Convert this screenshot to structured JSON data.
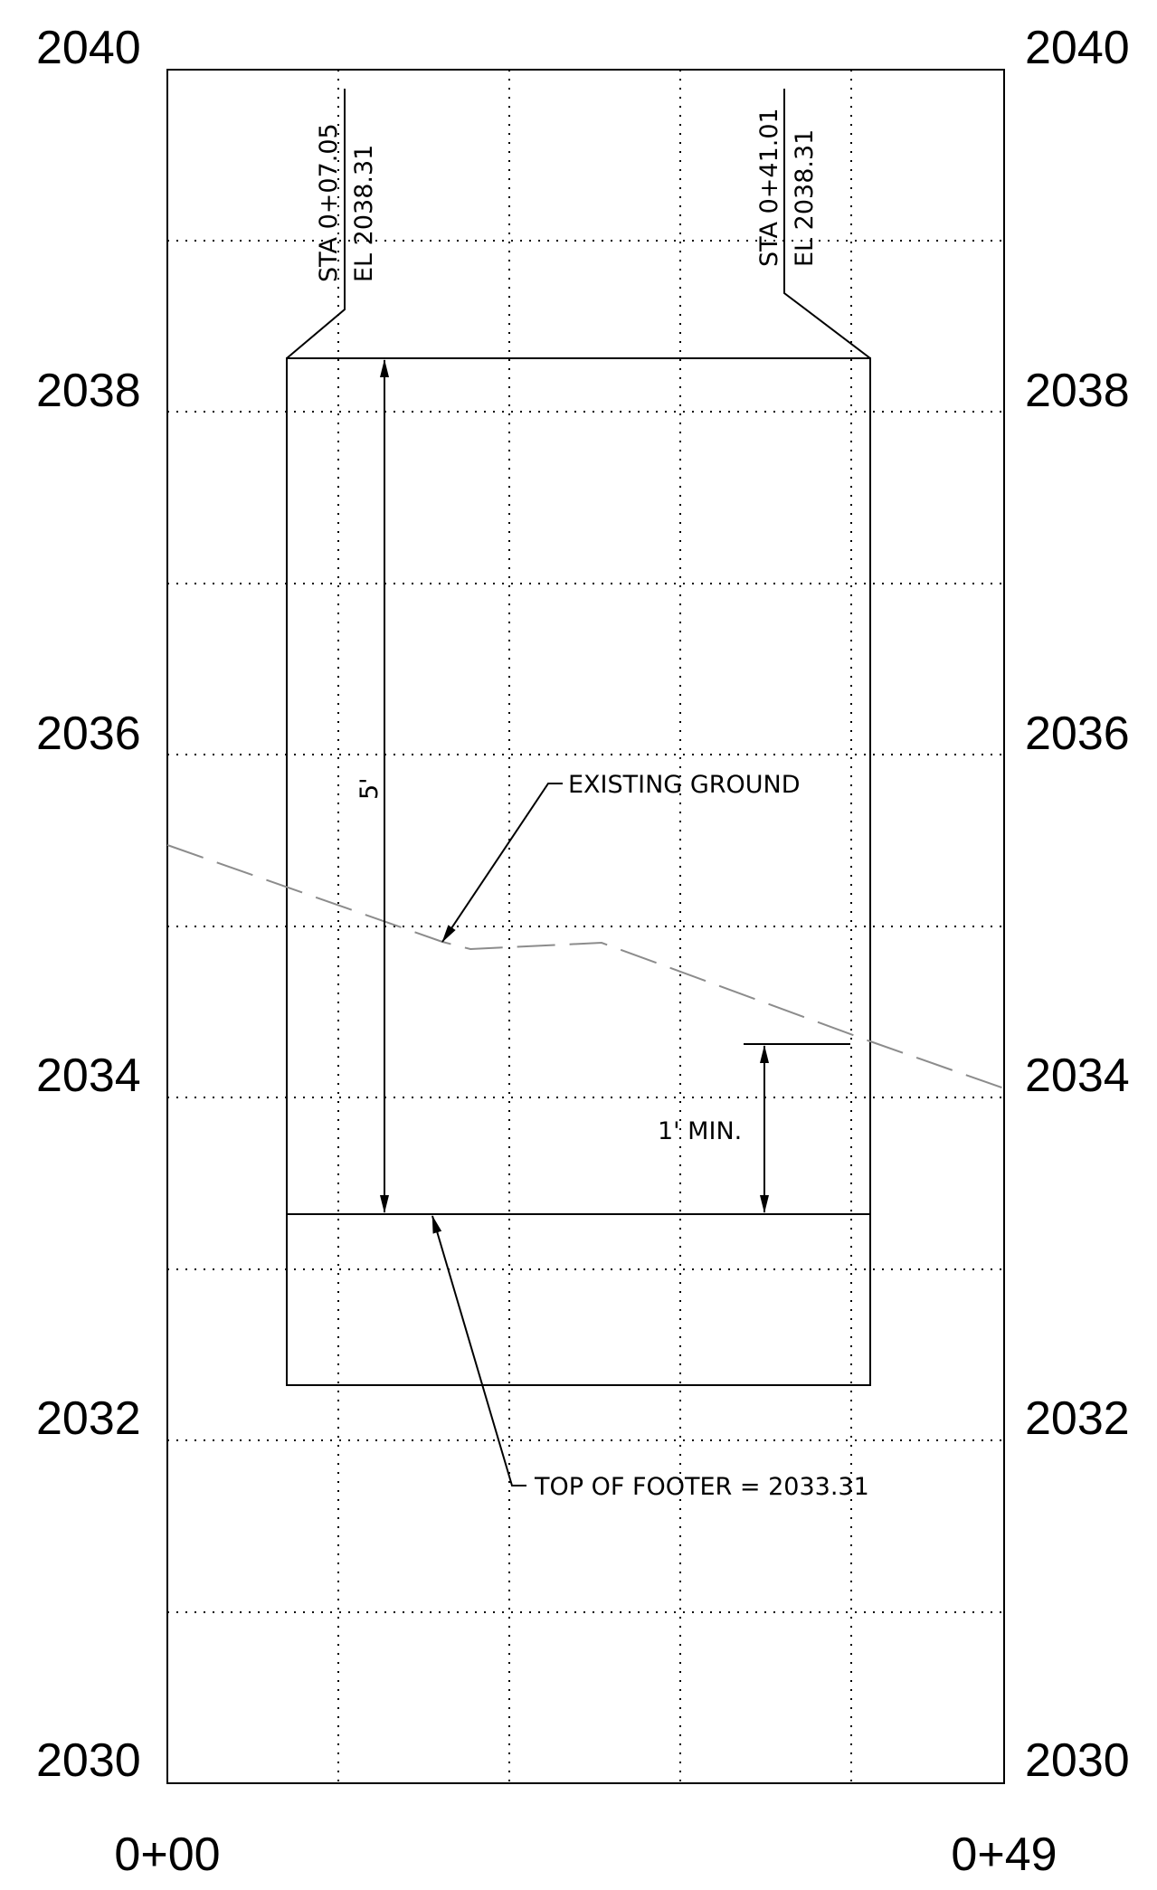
{
  "elevation_labels": [
    "2040",
    "2038",
    "2036",
    "2034",
    "2032",
    "2030"
  ],
  "station_labels": {
    "start": "0+00",
    "end": "0+49"
  },
  "left_callout": {
    "sta": "STA 0+07.05",
    "el": "EL 2038.31"
  },
  "right_callout": {
    "sta": "STA 0+41.01",
    "el": "EL 2038.31"
  },
  "dimension_height": "5'",
  "dimension_min_cover": "1' MIN.",
  "existing_ground_label": "EXISTING GROUND",
  "top_of_footer_label": "TOP OF FOOTER = 2033.31"
}
